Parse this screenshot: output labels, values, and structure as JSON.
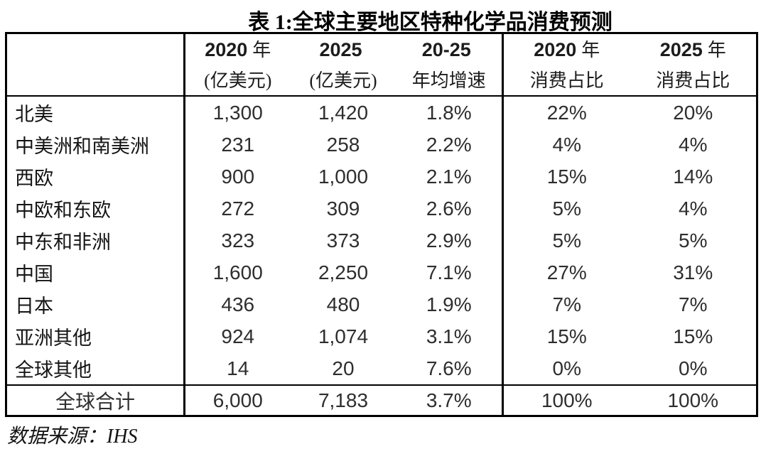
{
  "chart_data": {
    "type": "table",
    "title": "表 1:全球主要地区特种化学品消费预测",
    "source": "数据来源：IHS",
    "columns": [
      {
        "line1_num": "",
        "line1_cn": "",
        "line2": ""
      },
      {
        "line1_num": "2020",
        "line1_cn": "年",
        "line2": "(亿美元)"
      },
      {
        "line1_num": "2025",
        "line1_cn": "",
        "line2": "(亿美元)"
      },
      {
        "line1_num": "20-25",
        "line1_cn": "",
        "line2": "年均增速"
      },
      {
        "line1_num": "2020",
        "line1_cn": "年",
        "line2": "消费占比"
      },
      {
        "line1_num": "2025",
        "line1_cn": "年",
        "line2": "消费占比"
      }
    ],
    "rows": [
      {
        "region": "北美",
        "v2020": "1,300",
        "v2025": "1,420",
        "cagr": "1.8%",
        "share2020": "22%",
        "share2025": "20%"
      },
      {
        "region": "中美洲和南美洲",
        "v2020": "231",
        "v2025": "258",
        "cagr": "2.2%",
        "share2020": "4%",
        "share2025": "4%"
      },
      {
        "region": "西欧",
        "v2020": "900",
        "v2025": "1,000",
        "cagr": "2.1%",
        "share2020": "15%",
        "share2025": "14%"
      },
      {
        "region": "中欧和东欧",
        "v2020": "272",
        "v2025": "309",
        "cagr": "2.6%",
        "share2020": "5%",
        "share2025": "4%"
      },
      {
        "region": "中东和非洲",
        "v2020": "323",
        "v2025": "373",
        "cagr": "2.9%",
        "share2020": "5%",
        "share2025": "5%"
      },
      {
        "region": "中国",
        "v2020": "1,600",
        "v2025": "2,250",
        "cagr": "7.1%",
        "share2020": "27%",
        "share2025": "31%"
      },
      {
        "region": "日本",
        "v2020": "436",
        "v2025": "480",
        "cagr": "1.9%",
        "share2020": "7%",
        "share2025": "7%"
      },
      {
        "region": "亚洲其他",
        "v2020": "924",
        "v2025": "1,074",
        "cagr": "3.1%",
        "share2020": "15%",
        "share2025": "15%"
      },
      {
        "region": "全球其他",
        "v2020": "14",
        "v2025": "20",
        "cagr": "7.6%",
        "share2020": "0%",
        "share2025": "0%"
      }
    ],
    "total_row": {
      "region": "全球合计",
      "v2020": "6,000",
      "v2025": "7,183",
      "cagr": "3.7%",
      "share2020": "100%",
      "share2025": "100%"
    },
    "layout": {
      "grid": "off",
      "vertical_dividers": "after region column and after CAGR column",
      "horizontal_rules": "below header and above total row"
    }
  },
  "colors": {
    "background": "#ffffff",
    "border": "#000000",
    "title_text": "#000000",
    "body_text": "#2e2e2e"
  }
}
